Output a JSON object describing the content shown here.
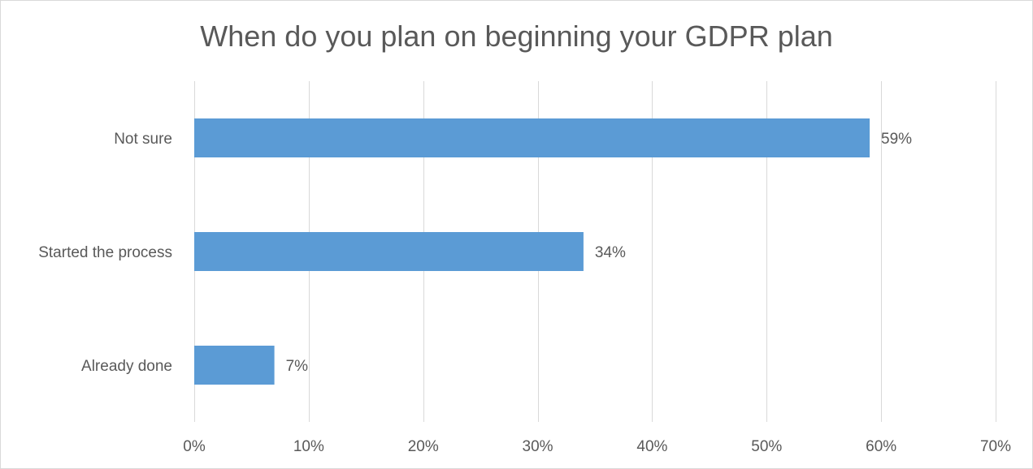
{
  "chart_data": {
    "type": "bar",
    "orientation": "horizontal",
    "title": "When do you plan on beginning your GDPR plan",
    "categories": [
      "Not sure",
      "Started the process",
      "Already done"
    ],
    "values": [
      59,
      34,
      7
    ],
    "data_labels": [
      "59%",
      "34%",
      "7%"
    ],
    "xlim": [
      0,
      70
    ],
    "xticks": [
      0,
      10,
      20,
      30,
      40,
      50,
      60,
      70
    ],
    "xtick_labels": [
      "0%",
      "10%",
      "20%",
      "30%",
      "40%",
      "50%",
      "60%",
      "70%"
    ],
    "bar_color": "#5b9bd5",
    "gridline_color": "#d9d9d9",
    "grid": "vertical",
    "legend": "none"
  }
}
